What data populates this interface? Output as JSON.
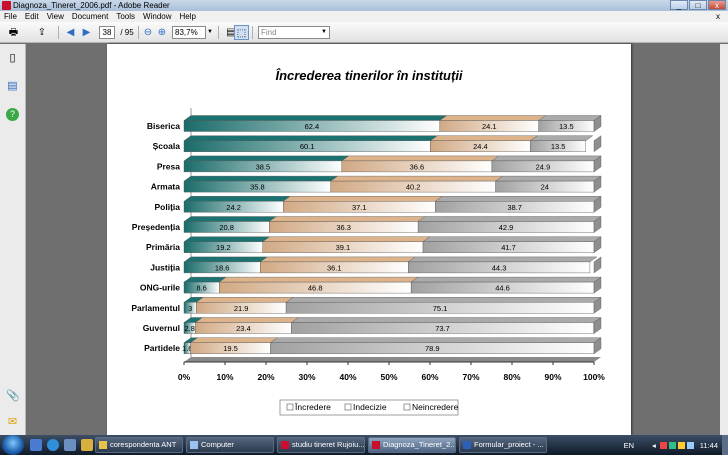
{
  "window": {
    "title": "Diagnoza_Tineret_2006.pdf - Adobe Reader",
    "min": "_",
    "max": "□",
    "close": "x",
    "doc_close": "x"
  },
  "menu": [
    "File",
    "Edit",
    "View",
    "Document",
    "Tools",
    "Window",
    "Help"
  ],
  "toolbar": {
    "page_current": "38",
    "page_total": "/ 95",
    "zoom": "83,7%",
    "find_placeholder": "Find"
  },
  "chart_data": {
    "type": "bar",
    "orientation": "horizontal",
    "stacked": "percent",
    "title": "Încrederea tinerilor în instituții",
    "categories": [
      "Biserica",
      "Școala",
      "Presa",
      "Armata",
      "Poliția",
      "Președenția",
      "Primăria",
      "Justiția",
      "ONG-urile",
      "Parlamentul",
      "Guvernul",
      "Partidele"
    ],
    "series": [
      {
        "name": "Încredere",
        "color": "#1f7f7d",
        "values": [
          62.4,
          60.1,
          38.5,
          35.8,
          24.2,
          20.8,
          19.2,
          18.6,
          8.6,
          3,
          2.8,
          1.6
        ]
      },
      {
        "name": "Indecizie",
        "color": "#f6c79b",
        "values": [
          24.1,
          24.4,
          36.6,
          40.2,
          37.1,
          36.3,
          39.1,
          36.1,
          46.8,
          21.9,
          23.4,
          19.5
        ]
      },
      {
        "name": "Neîncredere",
        "color": "#bdbdbd",
        "values": [
          13.5,
          13.5,
          24.9,
          24,
          38.7,
          42.9,
          41.7,
          44.3,
          44.6,
          75.1,
          73.7,
          78.9
        ]
      }
    ],
    "labels": [
      [
        "62.4",
        "24.1",
        "13.5"
      ],
      [
        "60.1",
        "24.4",
        "13.5"
      ],
      [
        "38.5",
        "36.6",
        "24.9"
      ],
      [
        "35.8",
        "40.2",
        "24"
      ],
      [
        "24.2",
        "37.1",
        "38.7"
      ],
      [
        "20.8",
        "36.3",
        "42.9"
      ],
      [
        "19.2",
        "39.1",
        "41.7"
      ],
      [
        "18.6",
        "36.1",
        "44.3"
      ],
      [
        "8.6",
        "46.8",
        "44.6"
      ],
      [
        "3",
        "21.9",
        "75.1"
      ],
      [
        "2.8",
        "23.4",
        "73.7"
      ],
      [
        "1.6",
        "19.5",
        "78.9"
      ]
    ],
    "xticks": [
      "0%",
      "10%",
      "20%",
      "30%",
      "40%",
      "50%",
      "60%",
      "70%",
      "80%",
      "90%",
      "100%"
    ],
    "xlim": [
      0,
      100
    ],
    "legend": [
      "Încredere",
      "Indecizie",
      "Neincredere"
    ],
    "legend_position": "bottom",
    "grid": false
  },
  "taskbar": {
    "tasks": [
      "corespondenta ANT",
      "Computer",
      "studiu tineret Rujoiu...",
      "Diagnoza_Tineret_2...",
      "Formular_proiect - ..."
    ],
    "lang": "EN",
    "time": "11:44"
  }
}
